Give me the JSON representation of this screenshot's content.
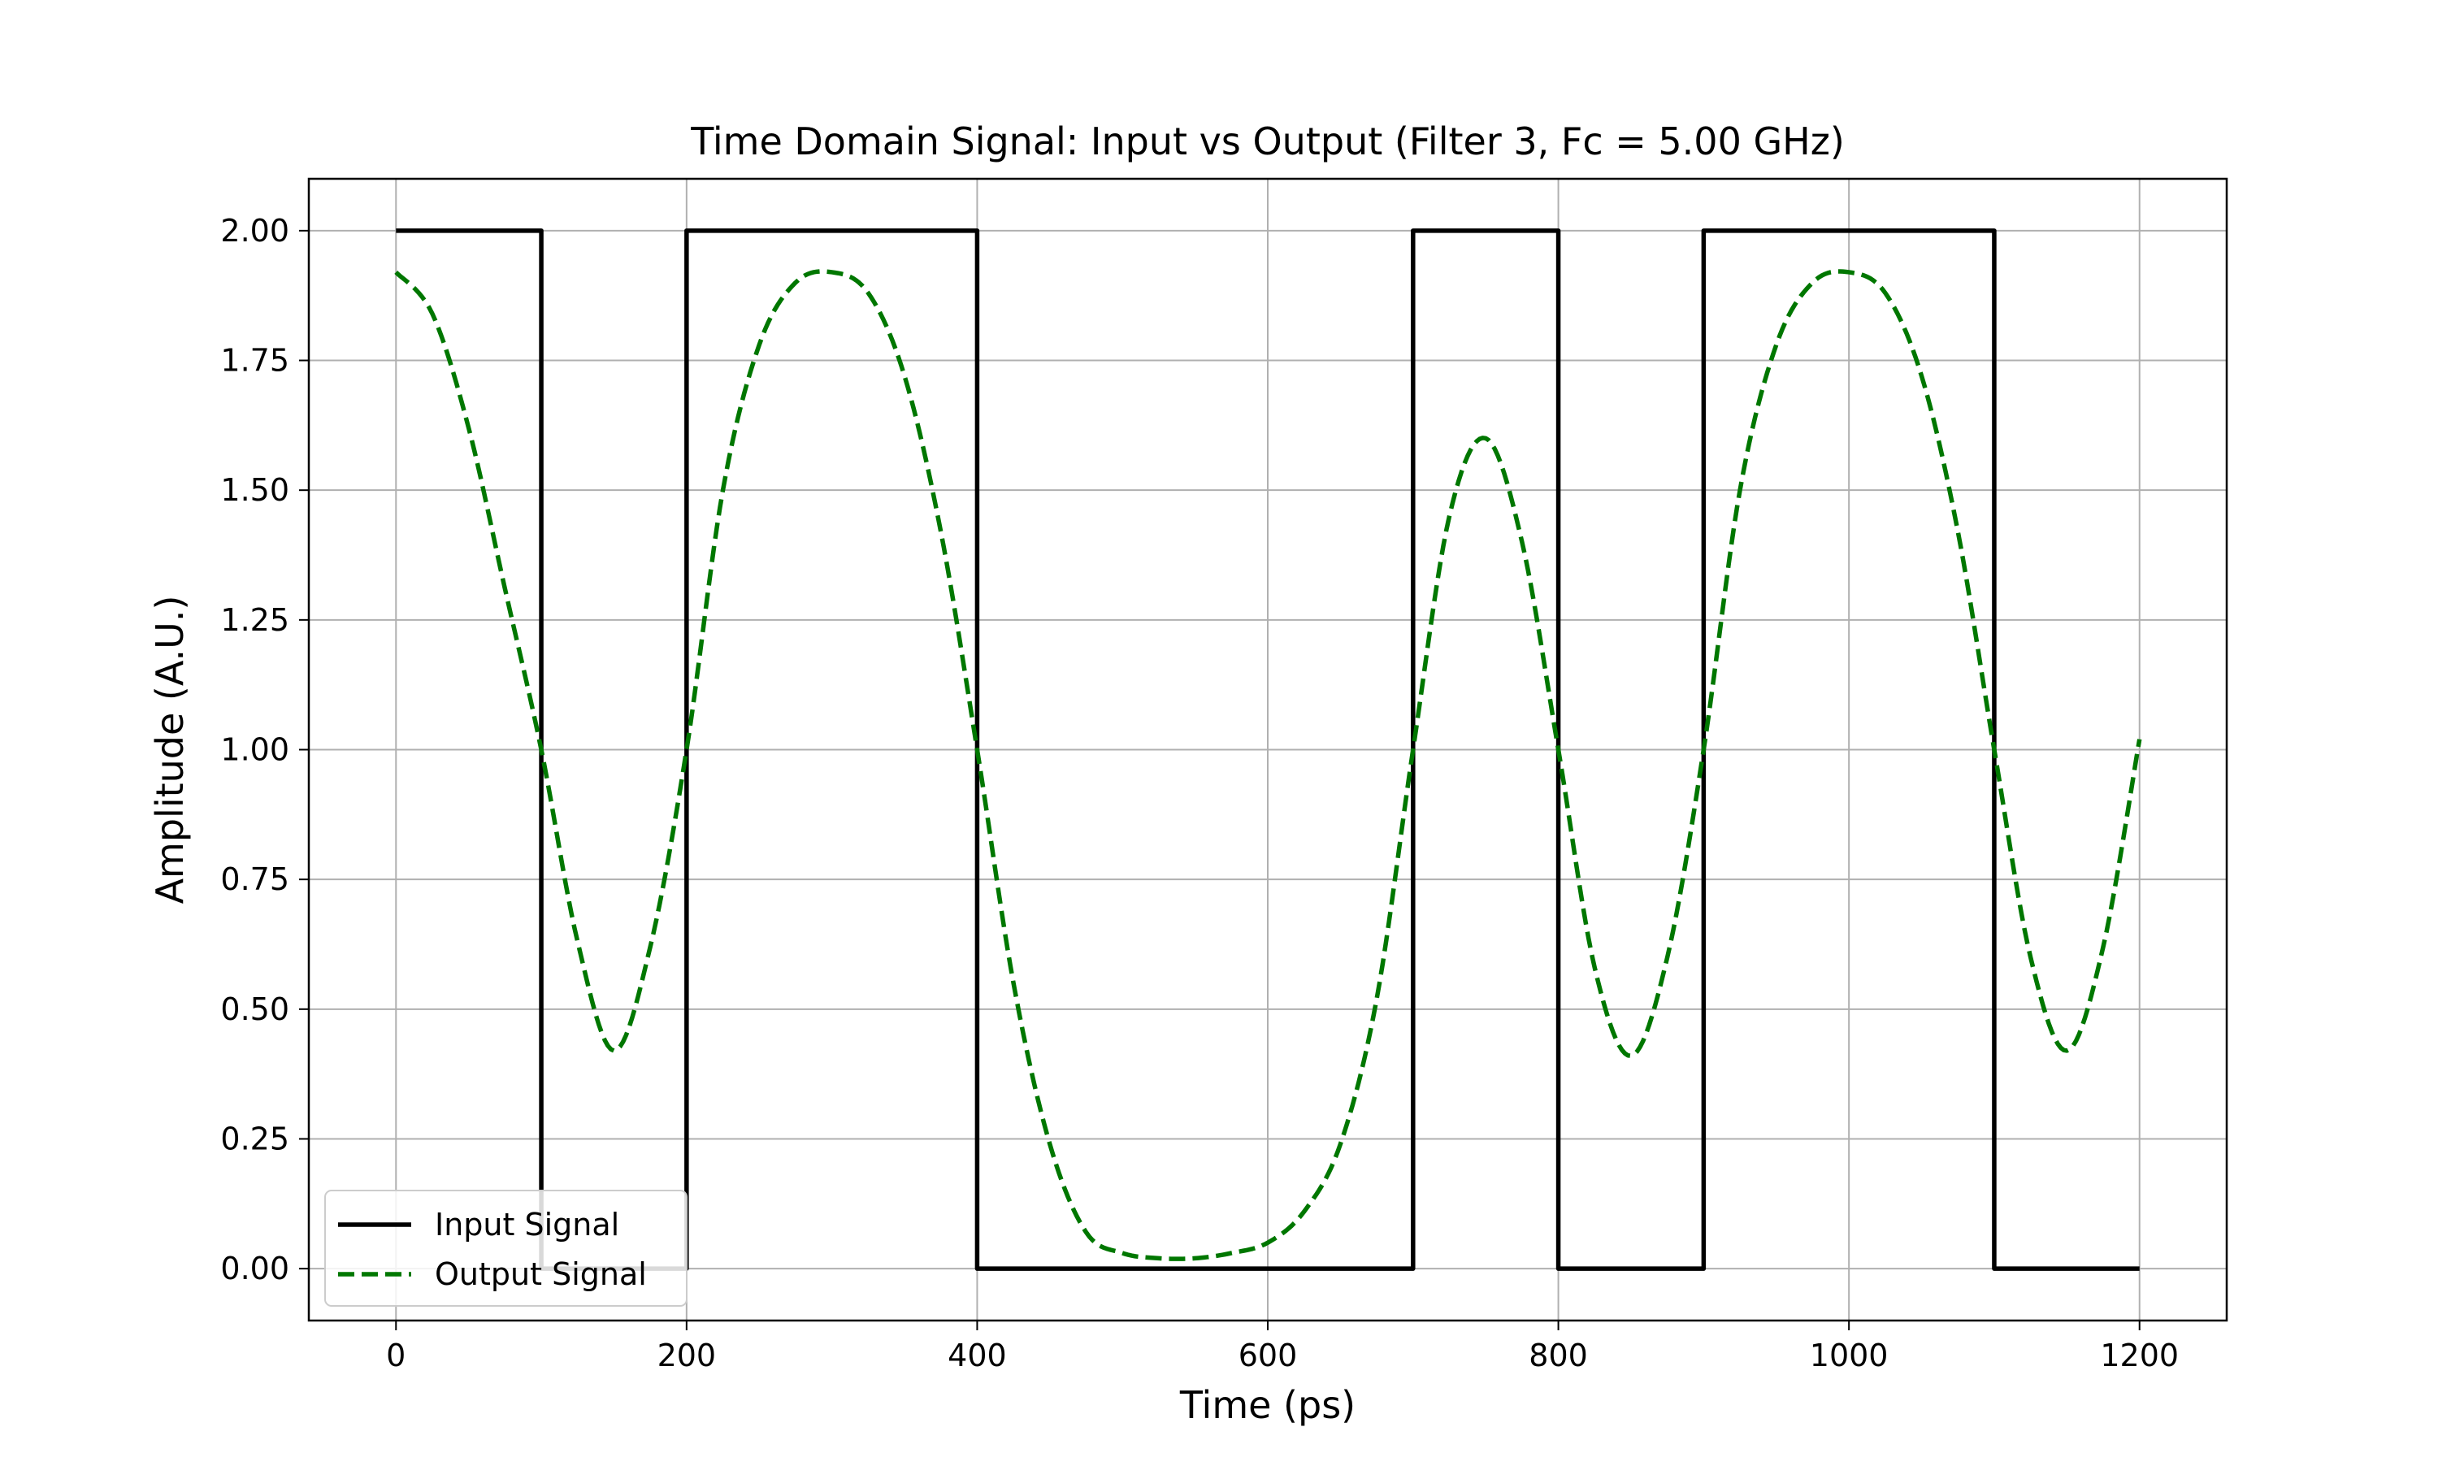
{
  "chart_data": {
    "type": "line",
    "title": "Time Domain Signal: Input vs Output (Filter 3, Fc = 5.00 GHz)",
    "xlabel": "Time (ps)",
    "ylabel": "Amplitude (A.U.)",
    "xlim": [
      -60,
      1260
    ],
    "ylim": [
      -0.1,
      2.1
    ],
    "xticks": [
      0,
      200,
      400,
      600,
      800,
      1000,
      1200
    ],
    "xtick_labels": [
      "0",
      "200",
      "400",
      "600",
      "800",
      "1000",
      "1200"
    ],
    "yticks": [
      0.0,
      0.25,
      0.5,
      0.75,
      1.0,
      1.25,
      1.5,
      1.75,
      2.0
    ],
    "ytick_labels": [
      "0.00",
      "0.25",
      "0.50",
      "0.75",
      "1.00",
      "1.25",
      "1.50",
      "1.75",
      "2.00"
    ],
    "grid": true,
    "legend_position": "bottom-left",
    "series": [
      {
        "name": "Input Signal",
        "color": "#000000",
        "style": "solid",
        "step": true,
        "x": [
          0,
          100,
          100,
          200,
          200,
          400,
          400,
          700,
          700,
          800,
          800,
          900,
          900,
          1100,
          1100,
          1200
        ],
        "y": [
          2,
          2,
          0,
          0,
          2,
          2,
          0,
          0,
          2,
          2,
          0,
          0,
          2,
          2,
          0,
          0
        ]
      },
      {
        "name": "Output Signal",
        "color": "#007700",
        "style": "dashed",
        "x": [
          0,
          25,
          50,
          75,
          100,
          125,
          150,
          175,
          200,
          225,
          250,
          275,
          300,
          325,
          350,
          375,
          400,
          425,
          450,
          475,
          500,
          525,
          550,
          575,
          600,
          625,
          650,
          675,
          700,
          725,
          750,
          775,
          800,
          825,
          850,
          875,
          900,
          925,
          950,
          975,
          1000,
          1025,
          1050,
          1075,
          1100,
          1125,
          1150,
          1175,
          1200
        ],
        "y": [
          1.92,
          1.84,
          1.62,
          1.31,
          1.0,
          0.63,
          0.42,
          0.62,
          1.0,
          1.5,
          1.78,
          1.9,
          1.92,
          1.88,
          1.72,
          1.42,
          1.0,
          0.55,
          0.24,
          0.07,
          0.03,
          0.02,
          0.02,
          0.03,
          0.05,
          0.11,
          0.24,
          0.52,
          1.0,
          1.45,
          1.6,
          1.4,
          1.0,
          0.58,
          0.41,
          0.6,
          1.0,
          1.5,
          1.78,
          1.9,
          1.92,
          1.88,
          1.72,
          1.42,
          1.0,
          0.6,
          0.42,
          0.62,
          1.02
        ]
      }
    ]
  }
}
